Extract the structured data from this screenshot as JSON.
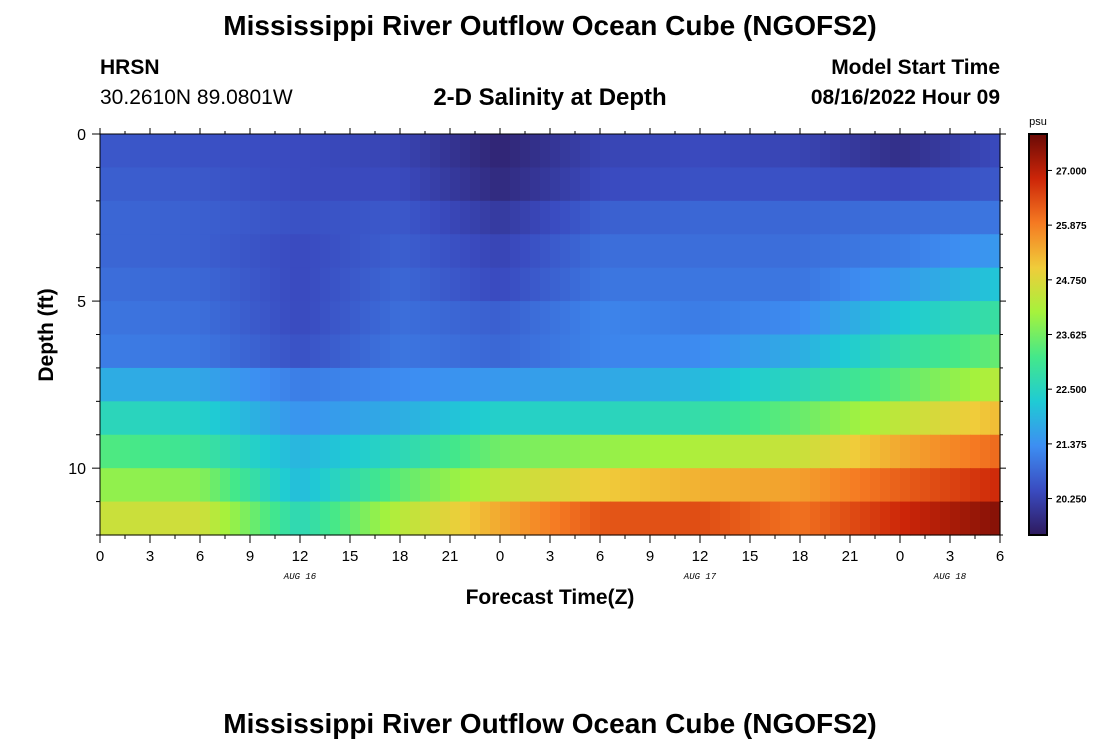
{
  "header": {
    "title": "Mississippi River Outflow Ocean Cube (NGOFS2)",
    "station_id": "HRSN",
    "station_coords": "30.2610N  89.0801W",
    "subtitle": "2-D Salinity at Depth",
    "model_start_label": "Model Start Time",
    "model_start_value": "08/16/2022 Hour 09"
  },
  "footer": {
    "title": "Mississippi River Outflow Ocean Cube (NGOFS2)"
  },
  "chart_data": {
    "type": "heatmap",
    "title": "2-D Salinity at Depth",
    "xlabel": "Forecast Time(Z)",
    "ylabel": "Depth (ft)",
    "x_tick_labels": [
      "0",
      "3",
      "6",
      "9",
      "12",
      "15",
      "18",
      "21",
      "0",
      "3",
      "6",
      "9",
      "12",
      "15",
      "18",
      "21",
      "0",
      "3",
      "6"
    ],
    "x_range_hours": [
      0,
      54
    ],
    "date_labels": [
      {
        "text": "AUG 16",
        "hour": 12
      },
      {
        "text": "AUG 17",
        "hour": 36
      },
      {
        "text": "AUG 18",
        "hour": 51
      }
    ],
    "y_ticks": [
      0,
      5,
      10
    ],
    "ylim": [
      0,
      12
    ],
    "y_inverted": true,
    "colorbar": {
      "unit": "psu",
      "tick_labels": [
        "27.000",
        "25.875",
        "24.750",
        "23.625",
        "22.500",
        "21.375",
        "20.250"
      ],
      "range": [
        19.5,
        27.75
      ],
      "colors": [
        "#2e1a5e",
        "#3a4bc0",
        "#3d8ef2",
        "#1fcbd4",
        "#44e88a",
        "#a6f23c",
        "#f0cc3a",
        "#f57a22",
        "#cc2508",
        "#6a0a06"
      ]
    },
    "depth_levels_ft": [
      0.5,
      1.5,
      2.5,
      3.5,
      4.5,
      5.5,
      6.5,
      7.5,
      8.5,
      9.5,
      10.5,
      11.5
    ],
    "time_hours": [
      0,
      6,
      12,
      18,
      24,
      30,
      36,
      42,
      48,
      54
    ],
    "salinity_psu": [
      [
        20.6,
        20.5,
        20.4,
        20.3,
        19.7,
        20.3,
        20.4,
        20.3,
        19.9,
        20.4
      ],
      [
        20.7,
        20.6,
        20.4,
        20.4,
        19.8,
        20.4,
        20.5,
        20.5,
        20.4,
        20.6
      ],
      [
        20.8,
        20.7,
        20.5,
        20.6,
        20.1,
        20.7,
        20.8,
        20.8,
        20.9,
        21.0
      ],
      [
        20.8,
        20.7,
        20.4,
        20.7,
        20.3,
        20.9,
        20.9,
        20.9,
        21.1,
        21.5
      ],
      [
        20.9,
        20.8,
        20.4,
        20.8,
        20.4,
        21.0,
        21.0,
        21.0,
        21.5,
        22.2
      ],
      [
        21.0,
        20.9,
        20.4,
        20.9,
        20.7,
        21.2,
        21.1,
        21.3,
        22.2,
        22.9
      ],
      [
        21.1,
        21.0,
        20.5,
        21.0,
        20.8,
        21.2,
        21.3,
        21.8,
        22.8,
        23.5
      ],
      [
        21.8,
        21.7,
        21.1,
        21.3,
        21.5,
        21.7,
        22.0,
        22.6,
        23.4,
        24.3
      ],
      [
        22.6,
        22.4,
        21.4,
        21.8,
        22.4,
        22.5,
        22.8,
        23.5,
        24.4,
        25.2
      ],
      [
        23.3,
        23.0,
        21.9,
        22.6,
        23.6,
        23.9,
        24.2,
        24.5,
        25.4,
        26.1
      ],
      [
        23.9,
        23.8,
        22.0,
        23.4,
        24.4,
        25.0,
        25.3,
        25.5,
        26.2,
        26.8
      ],
      [
        24.5,
        24.6,
        22.6,
        24.3,
        25.4,
        26.3,
        26.4,
        26.0,
        26.8,
        27.5
      ]
    ]
  }
}
